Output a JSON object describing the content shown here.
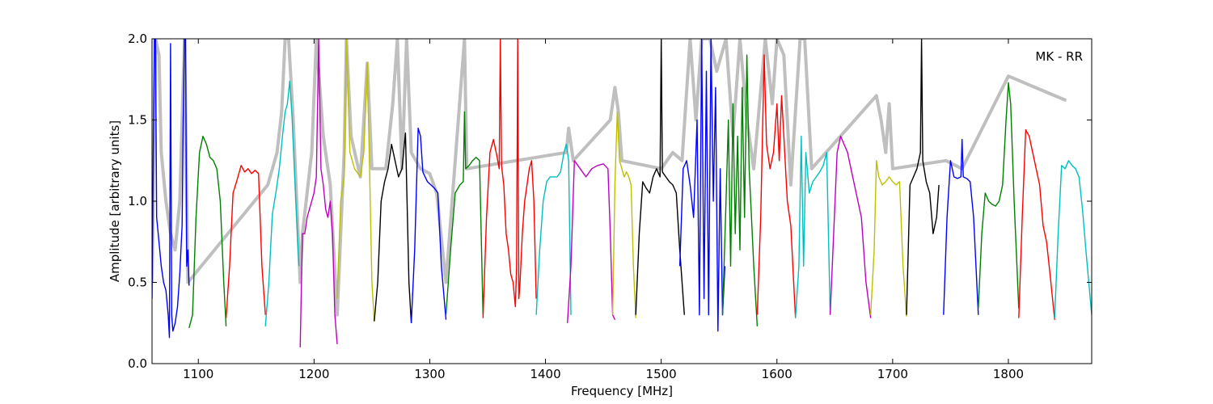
{
  "chart_data": {
    "type": "line",
    "title": "",
    "annotation": "MK - RR",
    "xlabel": "Frequency [MHz]",
    "ylabel": "Amplitude [arbitrary units]",
    "xlim": [
      1060,
      1872
    ],
    "ylim": [
      0,
      2
    ],
    "grid": false,
    "legend": "none",
    "x_ticks": [
      1100,
      1200,
      1300,
      1400,
      1500,
      1600,
      1700,
      1800
    ],
    "y_ticks": [
      0.0,
      0.5,
      1.0,
      1.5,
      2.0
    ],
    "background_series": {
      "color": "#bfbfbf",
      "description_visible": false,
      "points": [
        [
          1060,
          0.5
        ],
        [
          1063,
          2.0
        ],
        [
          1066,
          1.9
        ],
        [
          1068,
          1.3
        ],
        [
          1072,
          1.0
        ],
        [
          1076,
          0.8
        ],
        [
          1080,
          0.7
        ],
        [
          1084,
          1.0
        ],
        [
          1088,
          2.0
        ],
        [
          1091,
          0.5
        ],
        [
          1160,
          1.1
        ],
        [
          1168,
          1.3
        ],
        [
          1172,
          1.55
        ],
        [
          1175,
          2.0
        ],
        [
          1178,
          2.0
        ],
        [
          1182,
          1.5
        ],
        [
          1188,
          0.5
        ],
        [
          1190,
          0.8
        ],
        [
          1198,
          1.3
        ],
        [
          1202,
          2.0
        ],
        [
          1208,
          1.4
        ],
        [
          1214,
          1.1
        ],
        [
          1220,
          0.3
        ],
        [
          1226,
          1.3
        ],
        [
          1228,
          2.0
        ],
        [
          1232,
          1.4
        ],
        [
          1240,
          1.15
        ],
        [
          1246,
          1.85
        ],
        [
          1250,
          1.2
        ],
        [
          1262,
          1.2
        ],
        [
          1268,
          1.6
        ],
        [
          1272,
          2.0
        ],
        [
          1276,
          1.2
        ],
        [
          1280,
          2.0
        ],
        [
          1284,
          1.3
        ],
        [
          1292,
          1.2
        ],
        [
          1300,
          1.17
        ],
        [
          1306,
          1.05
        ],
        [
          1314,
          0.5
        ],
        [
          1330,
          2.0
        ],
        [
          1332,
          1.2
        ],
        [
          1418,
          1.3
        ],
        [
          1420,
          1.45
        ],
        [
          1424,
          1.25
        ],
        [
          1456,
          1.5
        ],
        [
          1460,
          1.7
        ],
        [
          1463,
          1.55
        ],
        [
          1466,
          1.25
        ],
        [
          1500,
          1.2
        ],
        [
          1510,
          1.3
        ],
        [
          1518,
          1.25
        ],
        [
          1525,
          2.0
        ],
        [
          1530,
          1.5
        ],
        [
          1535,
          2.0
        ],
        [
          1542,
          2.0
        ],
        [
          1548,
          1.8
        ],
        [
          1556,
          2.0
        ],
        [
          1562,
          1.4
        ],
        [
          1568,
          2.0
        ],
        [
          1574,
          1.5
        ],
        [
          1580,
          1.2
        ],
        [
          1590,
          2.0
        ],
        [
          1596,
          1.6
        ],
        [
          1600,
          2.0
        ],
        [
          1606,
          1.9
        ],
        [
          1612,
          1.1
        ],
        [
          1620,
          2.0
        ],
        [
          1624,
          2.0
        ],
        [
          1630,
          1.2
        ],
        [
          1686,
          1.65
        ],
        [
          1690,
          1.5
        ],
        [
          1694,
          1.3
        ],
        [
          1697,
          1.6
        ],
        [
          1700,
          1.2
        ],
        [
          1746,
          1.25
        ],
        [
          1760,
          1.2
        ],
        [
          1800,
          1.77
        ],
        [
          1850,
          1.62
        ]
      ]
    },
    "series": [
      {
        "color": "#0000ff",
        "x": [
          1060,
          1061,
          1062,
          1063,
          1064,
          1066,
          1068,
          1070,
          1072,
          1074,
          1075,
          1076,
          1077,
          1078,
          1080,
          1082,
          1084,
          1086,
          1087,
          1088,
          1089,
          1090,
          1091,
          1092
        ],
        "y": [
          0.4,
          1.2,
          2.0,
          2.0,
          0.9,
          0.75,
          0.6,
          0.5,
          0.45,
          0.3,
          0.16,
          1.97,
          0.3,
          0.2,
          0.25,
          0.35,
          0.55,
          0.85,
          1.5,
          2.0,
          2.0,
          0.6,
          0.7,
          0.48
        ]
      },
      {
        "color": "#008000",
        "x": [
          1092,
          1095,
          1098,
          1101,
          1104,
          1107,
          1110,
          1113,
          1116,
          1119,
          1122,
          1124
        ],
        "y": [
          0.22,
          0.3,
          0.9,
          1.3,
          1.4,
          1.35,
          1.27,
          1.25,
          1.2,
          1.0,
          0.5,
          0.23
        ]
      },
      {
        "color": "#ff0000",
        "x": [
          1124,
          1127,
          1130,
          1133,
          1137,
          1140,
          1143,
          1146,
          1149,
          1152,
          1155,
          1158
        ],
        "y": [
          0.28,
          0.6,
          1.05,
          1.12,
          1.22,
          1.18,
          1.2,
          1.17,
          1.19,
          1.17,
          0.6,
          0.3
        ]
      },
      {
        "color": "#00bfbf",
        "x": [
          1158,
          1161,
          1164,
          1167,
          1170,
          1173,
          1175,
          1177,
          1179,
          1181,
          1184,
          1187
        ],
        "y": [
          0.23,
          0.5,
          0.92,
          1.05,
          1.2,
          1.42,
          1.55,
          1.6,
          1.74,
          1.52,
          1.05,
          0.6
        ]
      },
      {
        "color": "#bf00bf",
        "x": [
          1188,
          1190,
          1192,
          1194,
          1196,
          1198,
          1200,
          1202,
          1204,
          1206,
          1208,
          1210,
          1212,
          1214,
          1216,
          1218,
          1220
        ],
        "y": [
          0.1,
          0.8,
          0.8,
          0.9,
          0.95,
          1.0,
          1.05,
          1.15,
          2.0,
          1.2,
          1.1,
          0.95,
          0.9,
          1.0,
          0.8,
          0.3,
          0.12
        ]
      },
      {
        "color": "#bfbf00",
        "x": [
          1220,
          1223,
          1226,
          1228,
          1231,
          1235,
          1240,
          1243,
          1246,
          1248,
          1250,
          1252
        ],
        "y": [
          0.4,
          1.0,
          1.15,
          2.0,
          1.3,
          1.2,
          1.15,
          1.3,
          1.85,
          1.2,
          0.5,
          0.26
        ]
      },
      {
        "color": "#000000",
        "x": [
          1252,
          1255,
          1258,
          1261,
          1264,
          1267,
          1270,
          1273,
          1276,
          1279,
          1282,
          1284
        ],
        "y": [
          0.26,
          0.5,
          1.0,
          1.12,
          1.2,
          1.35,
          1.25,
          1.15,
          1.2,
          1.42,
          0.5,
          0.25
        ]
      },
      {
        "color": "#0000ff",
        "x": [
          1284,
          1287,
          1290,
          1292,
          1294,
          1296,
          1298,
          1301,
          1304,
          1307,
          1310,
          1314
        ],
        "y": [
          0.25,
          0.7,
          1.45,
          1.4,
          1.18,
          1.15,
          1.12,
          1.1,
          1.08,
          1.05,
          0.6,
          0.27
        ]
      },
      {
        "color": "#008000",
        "x": [
          1314,
          1318,
          1322,
          1326,
          1329,
          1330,
          1331,
          1334,
          1337,
          1340,
          1343,
          1346
        ],
        "y": [
          0.3,
          0.7,
          1.05,
          1.1,
          1.12,
          1.55,
          1.2,
          1.22,
          1.25,
          1.27,
          1.25,
          0.3
        ]
      },
      {
        "color": "#ff0000",
        "x": [
          1346,
          1349,
          1352,
          1355,
          1358,
          1360,
          1361,
          1362,
          1364,
          1366,
          1368,
          1370,
          1372,
          1374,
          1375,
          1376,
          1377,
          1378,
          1380,
          1382,
          1384,
          1386,
          1388,
          1390,
          1392
        ],
        "y": [
          0.28,
          0.9,
          1.3,
          1.38,
          1.28,
          1.2,
          2.0,
          1.22,
          1.1,
          0.8,
          0.7,
          0.55,
          0.5,
          0.35,
          0.6,
          2.0,
          0.4,
          0.5,
          0.8,
          1.0,
          1.1,
          1.2,
          1.25,
          1.0,
          0.4
        ]
      },
      {
        "color": "#00bfbf",
        "x": [
          1392,
          1395,
          1398,
          1401,
          1404,
          1407,
          1410,
          1413,
          1416,
          1418,
          1420,
          1422
        ],
        "y": [
          0.3,
          0.7,
          1.0,
          1.12,
          1.15,
          1.15,
          1.15,
          1.18,
          1.3,
          1.35,
          1.25,
          0.3
        ]
      },
      {
        "color": "#bf00bf",
        "x": [
          1419,
          1422,
          1425,
          1430,
          1435,
          1440,
          1445,
          1450,
          1454,
          1456,
          1458,
          1460
        ],
        "y": [
          0.25,
          0.6,
          1.25,
          1.2,
          1.15,
          1.2,
          1.22,
          1.23,
          1.2,
          0.8,
          0.3,
          0.27
        ]
      },
      {
        "color": "#bfbf00",
        "x": [
          1458,
          1460,
          1462,
          1464,
          1466,
          1468,
          1470,
          1472,
          1474,
          1476,
          1478
        ],
        "y": [
          0.3,
          1.1,
          1.55,
          1.25,
          1.2,
          1.15,
          1.18,
          1.15,
          1.1,
          0.6,
          0.28
        ]
      },
      {
        "color": "#000000",
        "x": [
          1478,
          1481,
          1484,
          1487,
          1490,
          1493,
          1496,
          1499,
          1500,
          1501,
          1504,
          1507,
          1510,
          1513,
          1516,
          1520
        ],
        "y": [
          0.3,
          0.8,
          1.12,
          1.08,
          1.05,
          1.15,
          1.2,
          1.15,
          2.0,
          1.18,
          1.15,
          1.12,
          1.1,
          1.05,
          0.7,
          0.3
        ]
      },
      {
        "color": "#0000ff",
        "x": [
          1516,
          1519,
          1522,
          1525,
          1528,
          1531,
          1533,
          1535,
          1537,
          1539,
          1541,
          1543,
          1545,
          1547,
          1549,
          1551,
          1553,
          1555
        ],
        "y": [
          0.6,
          1.2,
          1.25,
          1.1,
          0.9,
          1.5,
          0.3,
          2.0,
          0.4,
          1.8,
          0.3,
          2.0,
          1.0,
          1.7,
          0.2,
          1.2,
          0.3,
          0.6
        ]
      },
      {
        "color": "#008000",
        "x": [
          1553,
          1556,
          1558,
          1560,
          1562,
          1564,
          1566,
          1568,
          1570,
          1572,
          1574,
          1576,
          1578,
          1580,
          1583
        ],
        "y": [
          0.3,
          1.0,
          1.5,
          0.6,
          1.6,
          0.8,
          1.4,
          0.7,
          1.7,
          0.9,
          1.9,
          1.2,
          0.9,
          0.6,
          0.23
        ]
      },
      {
        "color": "#ff0000",
        "x": [
          1583,
          1586,
          1589,
          1591,
          1594,
          1597,
          1600,
          1602,
          1604,
          1606,
          1609,
          1612,
          1616
        ],
        "y": [
          0.3,
          0.9,
          1.9,
          1.35,
          1.2,
          1.3,
          1.6,
          1.25,
          1.65,
          1.4,
          1.0,
          0.85,
          0.28
        ]
      },
      {
        "color": "#00bfbf",
        "x": [
          1616,
          1619,
          1621,
          1623,
          1625,
          1628,
          1631,
          1634,
          1637,
          1640,
          1643,
          1646
        ],
        "y": [
          0.28,
          0.6,
          1.4,
          0.6,
          1.3,
          1.05,
          1.12,
          1.15,
          1.18,
          1.22,
          1.3,
          0.3
        ]
      },
      {
        "color": "#bf00bf",
        "x": [
          1646,
          1649,
          1652,
          1655,
          1658,
          1661,
          1664,
          1667,
          1670,
          1673,
          1677,
          1681
        ],
        "y": [
          0.3,
          0.8,
          1.3,
          1.4,
          1.35,
          1.3,
          1.2,
          1.1,
          1.0,
          0.9,
          0.5,
          0.28
        ]
      },
      {
        "color": "#bfbf00",
        "x": [
          1681,
          1684,
          1686,
          1688,
          1691,
          1694,
          1697,
          1700,
          1703,
          1706,
          1709,
          1712
        ],
        "y": [
          0.3,
          0.7,
          1.25,
          1.15,
          1.1,
          1.12,
          1.15,
          1.12,
          1.1,
          1.12,
          0.6,
          0.29
        ]
      },
      {
        "color": "#000000",
        "x": [
          1712,
          1715,
          1718,
          1721,
          1724,
          1725,
          1726,
          1729,
          1732,
          1735,
          1738,
          1740
        ],
        "y": [
          0.3,
          1.1,
          1.15,
          1.2,
          1.3,
          2.0,
          1.25,
          1.12,
          1.05,
          0.8,
          0.9,
          1.1
        ]
      },
      {
        "color": "#0000ff",
        "x": [
          1744,
          1747,
          1750,
          1753,
          1756,
          1759,
          1760,
          1761,
          1764,
          1767,
          1770,
          1774
        ],
        "y": [
          0.3,
          0.9,
          1.25,
          1.15,
          1.14,
          1.15,
          1.38,
          1.15,
          1.14,
          1.12,
          0.9,
          0.3
        ]
      },
      {
        "color": "#008000",
        "x": [
          1774,
          1777,
          1780,
          1783,
          1786,
          1789,
          1792,
          1795,
          1798,
          1800,
          1802,
          1805,
          1809
        ],
        "y": [
          0.34,
          0.8,
          1.05,
          1.0,
          0.98,
          0.97,
          1.0,
          1.1,
          1.5,
          1.73,
          1.6,
          1.0,
          0.34
        ]
      },
      {
        "color": "#ff0000",
        "x": [
          1809,
          1812,
          1815,
          1818,
          1821,
          1824,
          1827,
          1830,
          1833,
          1836,
          1840
        ],
        "y": [
          0.28,
          0.9,
          1.44,
          1.4,
          1.3,
          1.2,
          1.1,
          0.85,
          0.75,
          0.55,
          0.27
        ]
      },
      {
        "color": "#00bfbf",
        "x": [
          1840,
          1843,
          1846,
          1849,
          1852,
          1855,
          1858,
          1861,
          1864,
          1867,
          1872
        ],
        "y": [
          0.28,
          0.8,
          1.22,
          1.2,
          1.25,
          1.22,
          1.2,
          1.15,
          0.95,
          0.7,
          0.3
        ]
      }
    ]
  }
}
